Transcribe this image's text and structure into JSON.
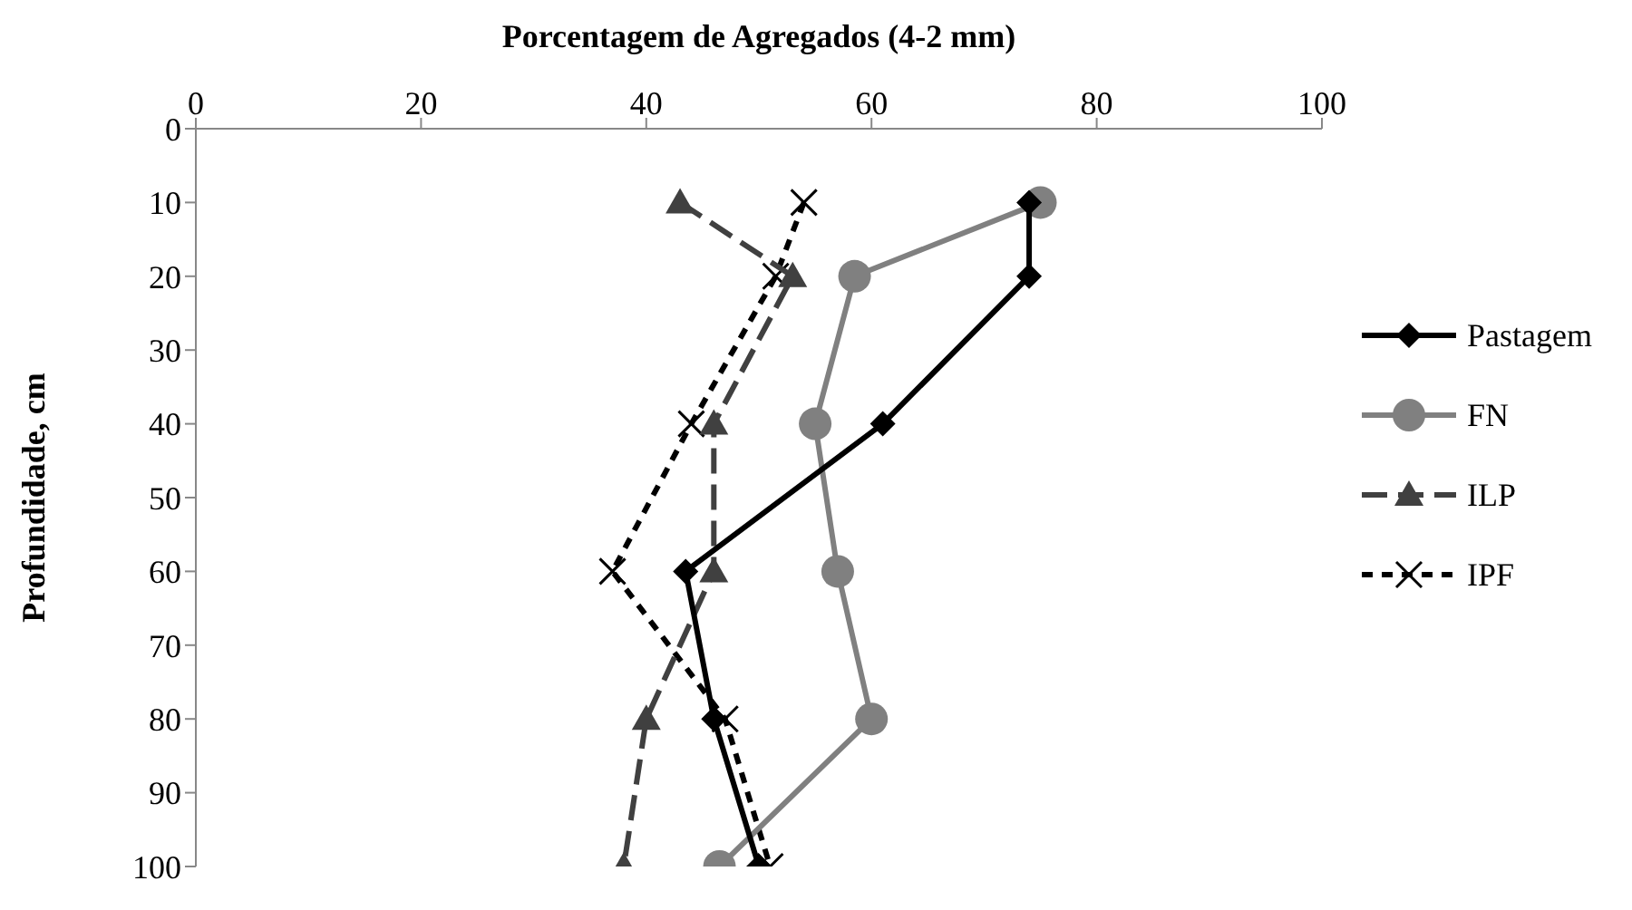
{
  "chart_data": {
    "type": "line",
    "xlabel": "Porcentagem de Agregados (4-2 mm)",
    "ylabel": "Profundidade, cm",
    "xlim": [
      0,
      100
    ],
    "xticks": [
      0,
      20,
      40,
      60,
      80,
      100
    ],
    "ylim": [
      100,
      0
    ],
    "yticks": [
      0,
      10,
      20,
      30,
      40,
      50,
      60,
      70,
      80,
      90,
      100
    ],
    "grid": false,
    "legend": "right",
    "series": [
      {
        "name": "Pastagem",
        "color": "#000000",
        "marker": "diamond",
        "line_style": "solid",
        "x": [
          74,
          74,
          61,
          43.5,
          46,
          50
        ],
        "values": [
          10,
          20,
          40,
          60,
          80,
          100
        ]
      },
      {
        "name": "FN",
        "color": "#808080",
        "marker": "circle",
        "line_style": "solid",
        "x": [
          75,
          58.5,
          55,
          57,
          60,
          46.5
        ],
        "values": [
          10,
          20,
          40,
          60,
          80,
          100
        ]
      },
      {
        "name": "ILP",
        "color": "#404040",
        "marker": "triangle",
        "line_style": "dashed",
        "x": [
          43,
          53,
          46,
          46,
          40,
          38
        ],
        "values": [
          10,
          20,
          40,
          60,
          80,
          100
        ]
      },
      {
        "name": "IPF",
        "color": "#000000",
        "marker": "cross",
        "line_style": "dotted",
        "x": [
          54,
          51.5,
          44,
          37,
          47,
          51
        ],
        "values": [
          10,
          20,
          40,
          60,
          80,
          100
        ]
      }
    ]
  }
}
